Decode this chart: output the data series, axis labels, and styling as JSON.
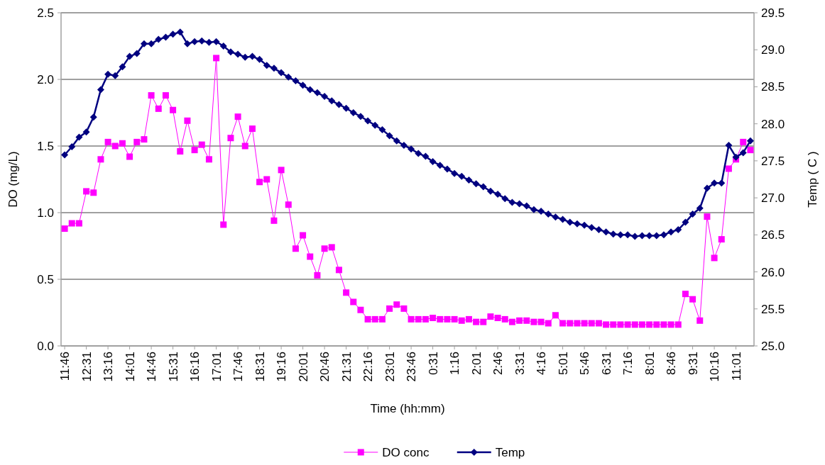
{
  "chart_data": {
    "type": "line",
    "xlabel": "Time (hh:mm)",
    "ylabel": "DO (mg/L)",
    "y2label": "Temp ( C )",
    "categories": [
      "11:46",
      null,
      null,
      "12:31",
      null,
      null,
      "13:16",
      null,
      null,
      "14:01",
      null,
      null,
      "14:46",
      null,
      null,
      "15:31",
      null,
      null,
      "16:16",
      null,
      null,
      "17:01",
      null,
      null,
      "17:46",
      null,
      null,
      "18:31",
      null,
      null,
      "19:16",
      null,
      null,
      "20:01",
      null,
      null,
      "20:46",
      null,
      null,
      "21:31",
      null,
      null,
      "22:16",
      null,
      null,
      "23:01",
      null,
      null,
      "23:46",
      null,
      null,
      "0:31",
      null,
      null,
      "1:16",
      null,
      null,
      "2:01",
      null,
      null,
      "2:46",
      null,
      null,
      "3:31",
      null,
      null,
      "4:16",
      null,
      null,
      "5:01",
      null,
      null,
      "5:46",
      null,
      null,
      "6:31",
      null,
      null,
      "7:16",
      null,
      null,
      "8:01",
      null,
      null,
      "8:46",
      null,
      null,
      "9:31",
      null,
      null,
      "10:16",
      null,
      null,
      "11:01",
      null,
      null
    ],
    "ylim": [
      0,
      2.5
    ],
    "yticks": [
      {
        "value": 0,
        "label": "0.0"
      },
      {
        "value": 0.5,
        "label": "0.5"
      },
      {
        "value": 1,
        "label": "1.0"
      },
      {
        "value": 1.5,
        "label": "1.5"
      },
      {
        "value": 2,
        "label": "2.0"
      },
      {
        "value": 2.5,
        "label": "2.5"
      }
    ],
    "y2lim": [
      25,
      29.5
    ],
    "y2ticks": [
      {
        "value": 25,
        "label": "25.0"
      },
      {
        "value": 25.5,
        "label": "25.5"
      },
      {
        "value": 26,
        "label": "26.0"
      },
      {
        "value": 26.5,
        "label": "26.5"
      },
      {
        "value": 27,
        "label": "27.0"
      },
      {
        "value": 27.5,
        "label": "27.5"
      },
      {
        "value": 28,
        "label": "28.0"
      },
      {
        "value": 28.5,
        "label": "28.5"
      },
      {
        "value": 29,
        "label": "29.0"
      },
      {
        "value": 29.5,
        "label": "29.5"
      }
    ],
    "grid": "y",
    "legend": "bottom",
    "series": [
      {
        "name": "DO conc",
        "color": "#ff00ff",
        "marker": "square",
        "values": [
          0.88,
          0.92,
          0.92,
          1.16,
          1.15,
          1.4,
          1.53,
          1.5,
          1.52,
          1.42,
          1.53,
          1.55,
          1.88,
          1.78,
          1.88,
          1.77,
          1.46,
          1.69,
          1.47,
          1.51,
          1.4,
          2.16,
          0.91,
          1.56,
          1.72,
          1.5,
          1.63,
          1.23,
          1.25,
          0.94,
          1.32,
          1.06,
          0.73,
          0.83,
          0.67,
          0.53,
          0.73,
          0.74,
          0.57,
          0.4,
          0.33,
          0.27,
          0.2,
          0.2,
          0.2,
          0.28,
          0.31,
          0.28,
          0.2,
          0.2,
          0.2,
          0.21,
          0.2,
          0.2,
          0.2,
          0.19,
          0.2,
          0.18,
          0.18,
          0.22,
          0.21,
          0.2,
          0.18,
          0.19,
          0.19,
          0.18,
          0.18,
          0.17,
          0.23,
          0.17,
          0.17,
          0.17,
          0.17,
          0.17,
          0.17,
          0.16,
          0.16,
          0.16,
          0.16,
          0.16,
          0.16,
          0.16,
          0.16,
          0.16,
          0.16,
          0.16,
          0.39,
          0.35,
          0.19,
          0.97,
          0.66,
          0.8,
          1.33,
          1.4,
          1.53,
          1.47
        ]
      },
      {
        "name": "Temp",
        "color": "#000080",
        "marker": "diamond",
        "axis": "y2",
        "values": [
          27.58,
          27.69,
          27.82,
          27.89,
          28.09,
          28.46,
          28.67,
          28.65,
          28.77,
          28.91,
          28.95,
          29.08,
          29.08,
          29.14,
          29.17,
          29.21,
          29.24,
          29.08,
          29.11,
          29.12,
          29.1,
          29.11,
          29.05,
          28.97,
          28.94,
          28.9,
          28.91,
          28.87,
          28.79,
          28.75,
          28.69,
          28.63,
          28.58,
          28.52,
          28.46,
          28.42,
          28.37,
          28.31,
          28.26,
          28.21,
          28.15,
          28.1,
          28.04,
          27.98,
          27.92,
          27.84,
          27.77,
          27.71,
          27.66,
          27.6,
          27.56,
          27.49,
          27.44,
          27.39,
          27.33,
          27.29,
          27.24,
          27.19,
          27.15,
          27.09,
          27.05,
          26.99,
          26.94,
          26.92,
          26.89,
          26.84,
          26.82,
          26.78,
          26.74,
          26.71,
          26.67,
          26.65,
          26.63,
          26.6,
          26.57,
          26.54,
          26.51,
          26.5,
          26.5,
          26.48,
          26.49,
          26.49,
          26.49,
          26.5,
          26.54,
          26.57,
          26.67,
          26.78,
          26.86,
          27.13,
          27.2,
          27.2,
          27.71,
          27.55,
          27.61,
          27.77
        ]
      }
    ]
  }
}
